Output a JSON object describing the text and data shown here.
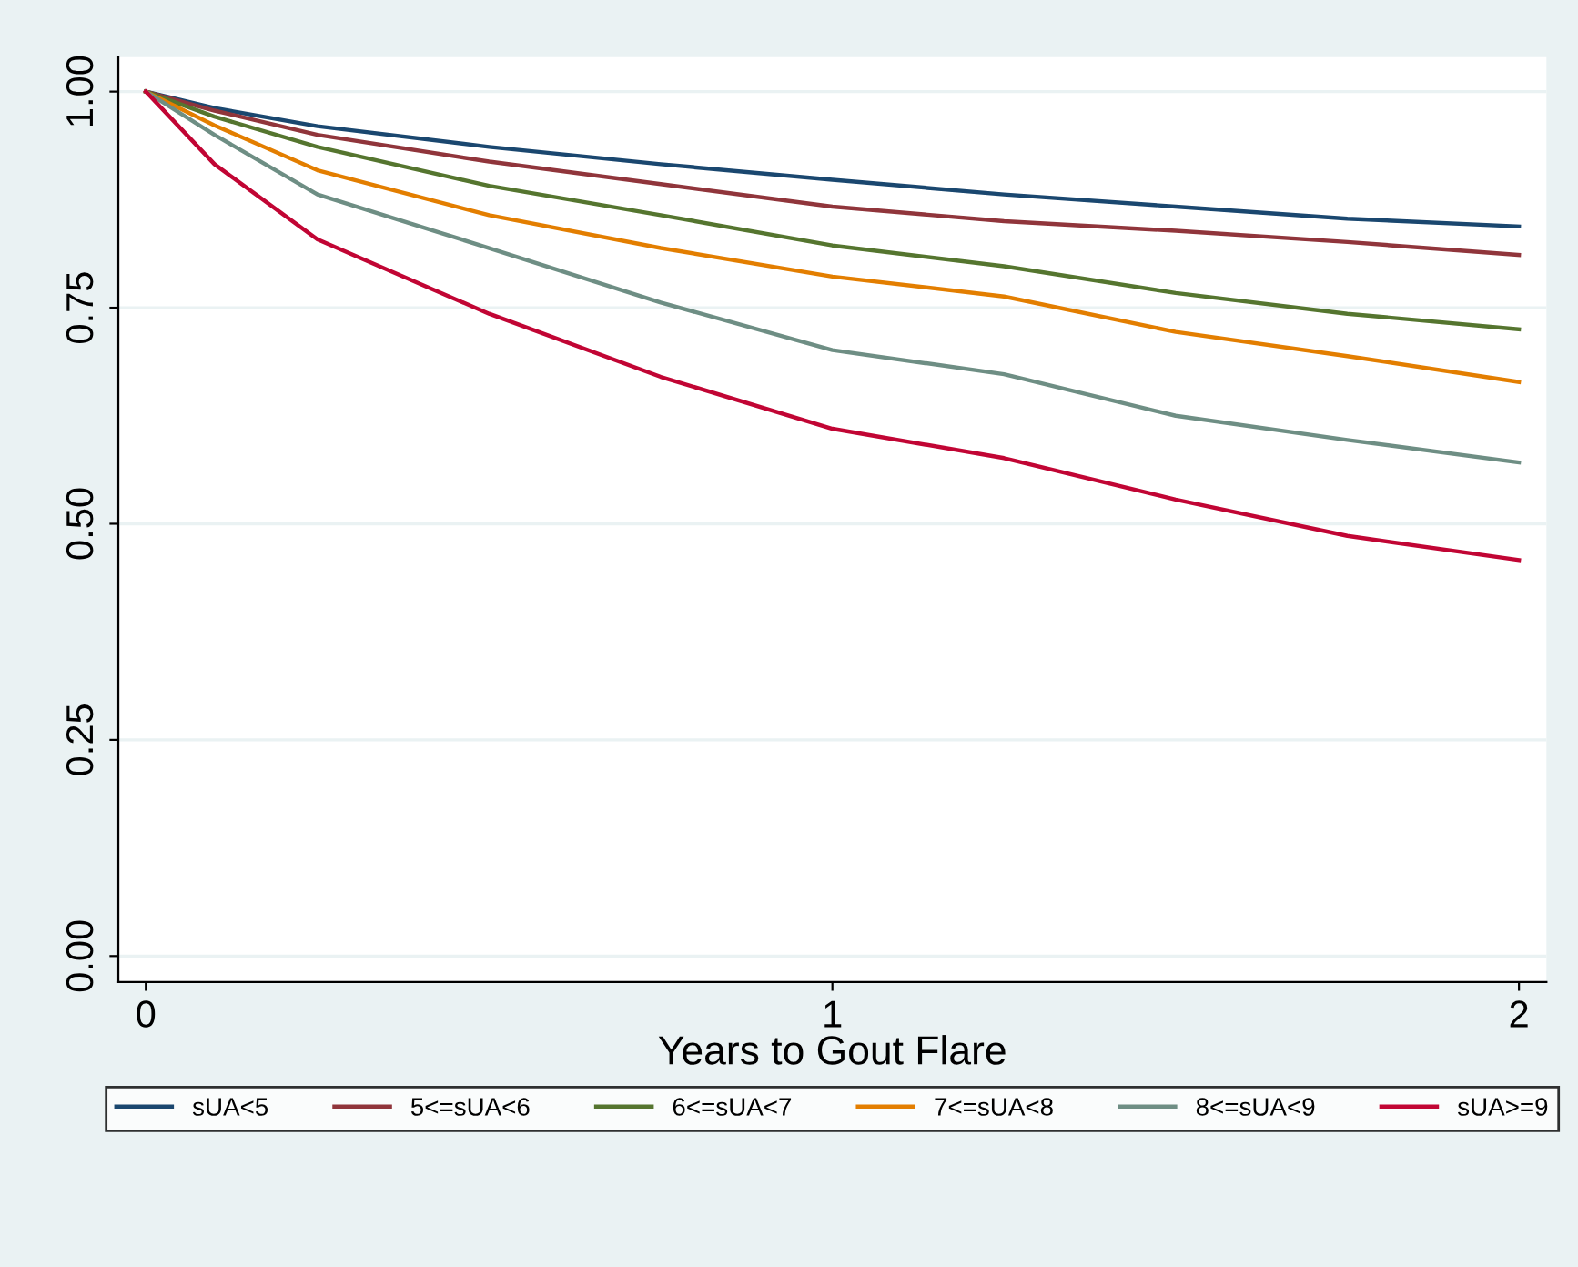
{
  "chart_data": {
    "type": "line",
    "xlabel": "Years to Gout Flare",
    "xlim": [
      -0.04,
      2.04
    ],
    "xticks": [
      0,
      1,
      2
    ],
    "ylim": [
      -0.03,
      1.04
    ],
    "yticks": [
      {
        "value": 0,
        "label": "0.00"
      },
      {
        "value": 0.25,
        "label": "0.25"
      },
      {
        "value": 0.5,
        "label": "0.50"
      },
      {
        "value": 0.75,
        "label": "0.75"
      },
      {
        "value": 1,
        "label": "1.00"
      }
    ],
    "grid": "y",
    "legend": "bottom",
    "marker": "none",
    "line_style": "solid",
    "x": [
      0,
      0.1,
      0.25,
      0.5,
      0.75,
      1,
      1.25,
      1.5,
      1.75,
      2
    ],
    "series": [
      {
        "name": "sUA<5",
        "color": "#1a476f",
        "values": [
          1,
          0.981,
          0.96,
          0.936,
          0.916,
          0.898,
          0.881,
          0.867,
          0.853,
          0.844
        ]
      },
      {
        "name": "5<=sUA<6",
        "color": "#90353b",
        "values": [
          1,
          0.978,
          0.95,
          0.919,
          0.893,
          0.867,
          0.85,
          0.839,
          0.826,
          0.811
        ]
      },
      {
        "name": "6<=sUA<7",
        "color": "#55752f",
        "values": [
          1,
          0.971,
          0.936,
          0.891,
          0.857,
          0.822,
          0.798,
          0.767,
          0.743,
          0.725
        ]
      },
      {
        "name": "7<=sUA<8",
        "color": "#e37e00",
        "values": [
          1,
          0.961,
          0.909,
          0.857,
          0.819,
          0.786,
          0.763,
          0.722,
          0.694,
          0.664
        ]
      },
      {
        "name": "8<=sUA<9",
        "color": "#6e8e84",
        "values": [
          1,
          0.95,
          0.881,
          0.819,
          0.756,
          0.701,
          0.673,
          0.625,
          0.597,
          0.571
        ]
      },
      {
        "name": "sUA>=9",
        "color": "#c10534",
        "values": [
          1,
          0.916,
          0.829,
          0.743,
          0.67,
          0.61,
          0.576,
          0.528,
          0.486,
          0.458
        ]
      }
    ]
  }
}
